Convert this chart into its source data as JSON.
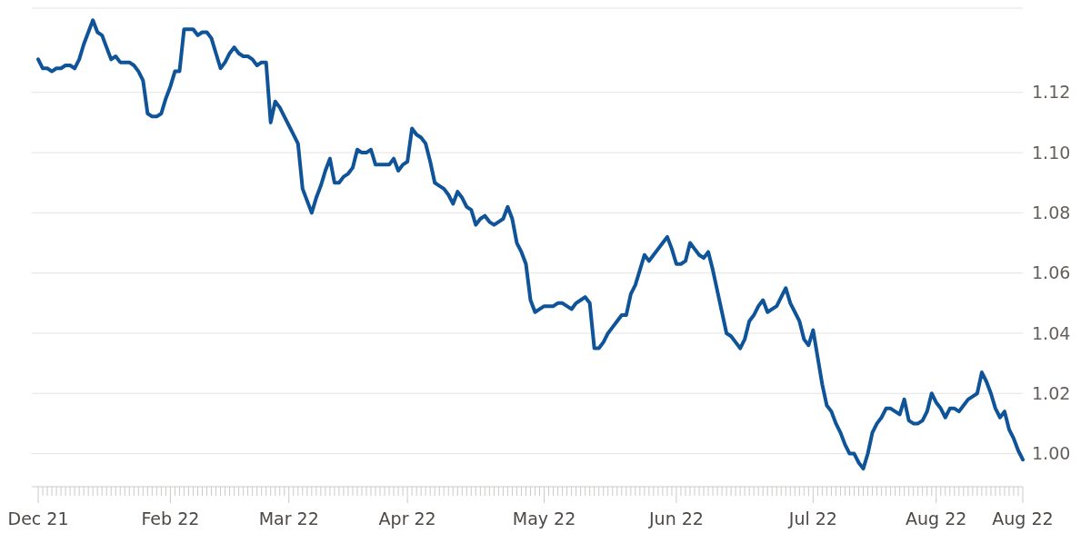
{
  "chart_data": {
    "type": "line",
    "categories": [
      "Dec 21",
      null,
      null,
      null,
      null,
      null,
      null,
      null,
      null,
      null,
      null,
      null,
      null,
      null,
      null,
      null,
      null,
      null,
      null,
      null,
      null,
      null,
      null,
      null,
      null,
      null,
      null,
      null,
      null,
      "Feb 22",
      null,
      null,
      null,
      null,
      null,
      null,
      null,
      null,
      null,
      null,
      null,
      null,
      null,
      null,
      null,
      null,
      null,
      null,
      null,
      null,
      null,
      null,
      null,
      null,
      null,
      "Mar 22",
      null,
      null,
      null,
      null,
      null,
      null,
      null,
      null,
      null,
      null,
      null,
      null,
      null,
      null,
      null,
      null,
      null,
      null,
      null,
      null,
      null,
      null,
      null,
      null,
      null,
      "Apr 22",
      null,
      null,
      null,
      null,
      null,
      null,
      null,
      null,
      null,
      null,
      null,
      null,
      null,
      null,
      null,
      null,
      null,
      null,
      null,
      null,
      null,
      null,
      null,
      null,
      null,
      null,
      null,
      null,
      null,
      "May 22",
      null,
      null,
      null,
      null,
      null,
      null,
      null,
      null,
      null,
      null,
      null,
      null,
      null,
      null,
      null,
      null,
      null,
      null,
      null,
      null,
      null,
      null,
      null,
      null,
      null,
      null,
      null,
      null,
      "Jun 22",
      null,
      null,
      null,
      null,
      null,
      null,
      null,
      null,
      null,
      null,
      null,
      null,
      null,
      null,
      null,
      null,
      null,
      null,
      null,
      null,
      null,
      null,
      null,
      null,
      null,
      null,
      null,
      null,
      null,
      "Jul 22",
      null,
      null,
      null,
      null,
      null,
      null,
      null,
      null,
      null,
      null,
      null,
      null,
      null,
      null,
      null,
      null,
      null,
      null,
      null,
      null,
      null,
      null,
      null,
      null,
      null,
      null,
      "Aug 22",
      null,
      null,
      null,
      null,
      null,
      null,
      null,
      null,
      null,
      null,
      null,
      null,
      null,
      null,
      null,
      null,
      null,
      null,
      "Aug 22"
    ],
    "series": [
      {
        "color": "#0f5499",
        "values": [
          1.131,
          1.128,
          1.128,
          1.127,
          1.128,
          1.128,
          1.129,
          1.129,
          1.128,
          1.131,
          1.136,
          1.14,
          1.144,
          1.14,
          1.139,
          1.135,
          1.131,
          1.132,
          1.13,
          1.13,
          1.13,
          1.129,
          1.127,
          1.124,
          1.113,
          1.112,
          1.112,
          1.113,
          1.118,
          1.122,
          1.127,
          1.127,
          1.141,
          1.141,
          1.141,
          1.139,
          1.14,
          1.14,
          1.138,
          1.133,
          1.128,
          1.13,
          1.133,
          1.135,
          1.133,
          1.132,
          1.132,
          1.131,
          1.129,
          1.13,
          1.13,
          1.11,
          1.117,
          1.115,
          1.112,
          1.109,
          1.106,
          1.103,
          1.088,
          1.084,
          1.08,
          1.085,
          1.089,
          1.094,
          1.098,
          1.09,
          1.09,
          1.092,
          1.093,
          1.095,
          1.101,
          1.1,
          1.1,
          1.101,
          1.096,
          1.096,
          1.096,
          1.096,
          1.098,
          1.094,
          1.096,
          1.097,
          1.108,
          1.106,
          1.105,
          1.103,
          1.097,
          1.09,
          1.089,
          1.088,
          1.086,
          1.083,
          1.087,
          1.085,
          1.082,
          1.081,
          1.076,
          1.078,
          1.079,
          1.077,
          1.076,
          1.077,
          1.078,
          1.082,
          1.078,
          1.07,
          1.067,
          1.063,
          1.051,
          1.047,
          1.048,
          1.049,
          1.049,
          1.049,
          1.05,
          1.05,
          1.049,
          1.048,
          1.05,
          1.051,
          1.052,
          1.05,
          1.035,
          1.035,
          1.037,
          1.04,
          1.042,
          1.044,
          1.046,
          1.046,
          1.053,
          1.056,
          1.061,
          1.066,
          1.064,
          1.066,
          1.068,
          1.07,
          1.072,
          1.068,
          1.063,
          1.063,
          1.064,
          1.07,
          1.068,
          1.066,
          1.065,
          1.067,
          1.061,
          1.054,
          1.047,
          1.04,
          1.039,
          1.037,
          1.035,
          1.038,
          1.044,
          1.046,
          1.049,
          1.051,
          1.047,
          1.048,
          1.049,
          1.052,
          1.055,
          1.05,
          1.047,
          1.044,
          1.038,
          1.036,
          1.041,
          1.032,
          1.023,
          1.016,
          1.014,
          1.01,
          1.007,
          1.003,
          1.0,
          1.0,
          0.997,
          0.995,
          1.0,
          1.007,
          1.01,
          1.012,
          1.015,
          1.015,
          1.014,
          1.013,
          1.018,
          1.011,
          1.01,
          1.01,
          1.011,
          1.014,
          1.02,
          1.017,
          1.015,
          1.012,
          1.015,
          1.015,
          1.014,
          1.016,
          1.018,
          1.019,
          1.02,
          1.027,
          1.024,
          1.02,
          1.015,
          1.012,
          1.014,
          1.008,
          1.005,
          1.001,
          0.998
        ]
      }
    ],
    "ylim": [
      0.989,
      1.148
    ],
    "yticks": [
      {
        "value": 1.0,
        "label": "1.00"
      },
      {
        "value": 1.02,
        "label": "1.02"
      },
      {
        "value": 1.04,
        "label": "1.04"
      },
      {
        "value": 1.06,
        "label": "1.06"
      },
      {
        "value": 1.08,
        "label": "1.08"
      },
      {
        "value": 1.1,
        "label": "1.10"
      },
      {
        "value": 1.12,
        "label": "1.12"
      },
      {
        "value": 1.148,
        "label": null
      }
    ],
    "grid": "y",
    "line_style": "solid",
    "marker": "none"
  }
}
